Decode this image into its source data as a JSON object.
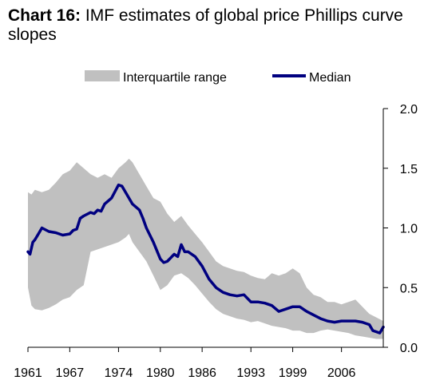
{
  "title": {
    "lead": "Chart 16:",
    "text": "IMF estimates of global price Phillips curve slopes"
  },
  "colors": {
    "median": "#000080",
    "range": "#c0c0c0",
    "axis": "#000000"
  },
  "chart_data": {
    "type": "area",
    "title": "Chart 16: IMF estimates of global price Phillips curve slopes",
    "xlabel": "",
    "ylabel": "",
    "xlim": [
      1961,
      2012
    ],
    "ylim": [
      0,
      2.0
    ],
    "x_tick_labels": [
      "1961",
      "1967",
      "1974",
      "1980",
      "1986",
      "1993",
      "1999",
      "2006"
    ],
    "y_tick_labels": [
      "0.0",
      "0.5",
      "1.0",
      "1.5",
      "2.0"
    ],
    "y_axis_side": "right",
    "grid": false,
    "legend_position": "top",
    "legend": [
      "Interquartile range",
      "Median"
    ],
    "series": [
      {
        "name": "Interquartile range",
        "type": "band",
        "x": [
          1961,
          1961.5,
          1962,
          1963,
          1964,
          1965,
          1966,
          1967,
          1968,
          1969,
          1970,
          1971,
          1972,
          1973,
          1974,
          1975,
          1975.5,
          1976,
          1977,
          1978,
          1979,
          1980,
          1981,
          1982,
          1983,
          1984,
          1985,
          1986,
          1987,
          1988,
          1989,
          1990,
          1991,
          1992,
          1993,
          1994,
          1995,
          1996,
          1997,
          1998,
          1999,
          2000,
          2001,
          2002,
          2003,
          2004,
          2005,
          2006,
          2007,
          2008,
          2009,
          2010,
          2011,
          2012
        ],
        "upper": [
          1.3,
          1.28,
          1.32,
          1.3,
          1.32,
          1.38,
          1.45,
          1.48,
          1.55,
          1.5,
          1.45,
          1.42,
          1.45,
          1.42,
          1.5,
          1.55,
          1.58,
          1.55,
          1.45,
          1.35,
          1.25,
          1.22,
          1.12,
          1.05,
          1.1,
          1.02,
          0.95,
          0.88,
          0.8,
          0.72,
          0.68,
          0.66,
          0.64,
          0.63,
          0.6,
          0.58,
          0.57,
          0.62,
          0.6,
          0.62,
          0.66,
          0.62,
          0.5,
          0.44,
          0.42,
          0.38,
          0.38,
          0.36,
          0.38,
          0.4,
          0.34,
          0.28,
          0.25,
          0.22
        ],
        "lower": [
          0.5,
          0.35,
          0.32,
          0.31,
          0.33,
          0.36,
          0.4,
          0.42,
          0.48,
          0.52,
          0.8,
          0.82,
          0.84,
          0.86,
          0.88,
          0.92,
          0.95,
          0.88,
          0.8,
          0.72,
          0.6,
          0.48,
          0.52,
          0.6,
          0.62,
          0.58,
          0.52,
          0.45,
          0.38,
          0.32,
          0.28,
          0.26,
          0.24,
          0.23,
          0.21,
          0.22,
          0.2,
          0.18,
          0.17,
          0.16,
          0.14,
          0.14,
          0.12,
          0.12,
          0.14,
          0.15,
          0.14,
          0.13,
          0.12,
          0.1,
          0.09,
          0.08,
          0.07,
          0.07
        ]
      },
      {
        "name": "Median",
        "type": "line",
        "x": [
          1961,
          1961.3,
          1961.7,
          1962,
          1962.5,
          1963,
          1964,
          1965,
          1966,
          1967,
          1967.5,
          1968,
          1968.5,
          1969,
          1970,
          1970.5,
          1971,
          1971.5,
          1972,
          1973,
          1974,
          1974.5,
          1975,
          1976,
          1977,
          1977.5,
          1978,
          1979,
          1980,
          1980.5,
          1981,
          1982,
          1982.5,
          1983,
          1983.5,
          1984,
          1985,
          1986,
          1987,
          1988,
          1989,
          1990,
          1991,
          1992,
          1993,
          1994,
          1995,
          1996,
          1997,
          1998,
          1999,
          2000,
          2001,
          2002,
          2003,
          2004,
          2005,
          2006,
          2007,
          2008,
          2009,
          2010,
          2010.5,
          2011,
          2011.5,
          2012
        ],
        "values": [
          0.8,
          0.78,
          0.88,
          0.9,
          0.95,
          1.0,
          0.97,
          0.96,
          0.94,
          0.95,
          0.98,
          0.99,
          1.08,
          1.1,
          1.13,
          1.12,
          1.15,
          1.14,
          1.2,
          1.25,
          1.36,
          1.35,
          1.3,
          1.2,
          1.15,
          1.08,
          1.0,
          0.88,
          0.74,
          0.71,
          0.72,
          0.78,
          0.76,
          0.86,
          0.8,
          0.8,
          0.76,
          0.68,
          0.57,
          0.5,
          0.46,
          0.44,
          0.43,
          0.44,
          0.38,
          0.38,
          0.37,
          0.35,
          0.3,
          0.32,
          0.34,
          0.34,
          0.3,
          0.27,
          0.24,
          0.22,
          0.21,
          0.22,
          0.22,
          0.22,
          0.21,
          0.19,
          0.14,
          0.13,
          0.12,
          0.17
        ]
      }
    ]
  }
}
